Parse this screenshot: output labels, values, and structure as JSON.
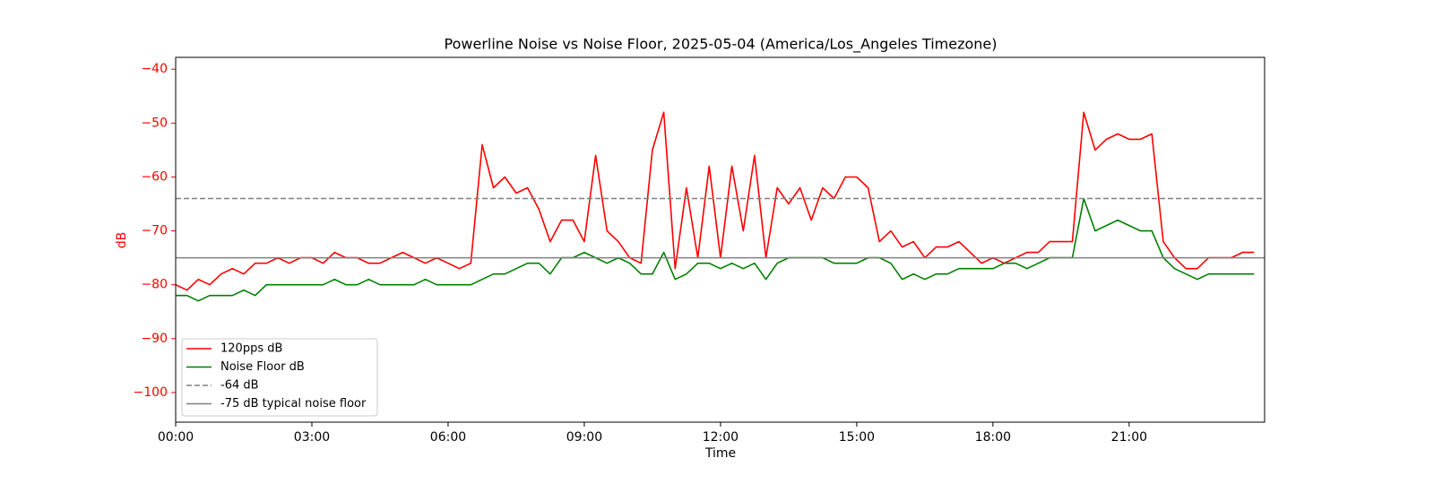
{
  "chart_data": {
    "type": "line",
    "title": "Powerline Noise vs Noise Floor, 2025-05-04 (America/Los_Angeles Timezone)",
    "xlabel": "Time",
    "ylabel": "dB",
    "ylabel_color": "red",
    "x": [
      "00:00",
      "00:15",
      "00:30",
      "00:45",
      "01:00",
      "01:15",
      "01:30",
      "01:45",
      "02:00",
      "02:15",
      "02:30",
      "02:45",
      "03:00",
      "03:15",
      "03:30",
      "03:45",
      "04:00",
      "04:15",
      "04:30",
      "04:45",
      "05:00",
      "05:15",
      "05:30",
      "05:45",
      "06:00",
      "06:15",
      "06:30",
      "06:45",
      "07:00",
      "07:15",
      "07:30",
      "07:45",
      "08:00",
      "08:15",
      "08:30",
      "08:45",
      "09:00",
      "09:15",
      "09:30",
      "09:45",
      "10:00",
      "10:15",
      "10:30",
      "10:45",
      "11:00",
      "11:15",
      "11:30",
      "11:45",
      "12:00",
      "12:15",
      "12:30",
      "12:45",
      "13:00",
      "13:15",
      "13:30",
      "13:45",
      "14:00",
      "14:15",
      "14:30",
      "14:45",
      "15:00",
      "15:15",
      "15:30",
      "15:45",
      "16:00",
      "16:15",
      "16:30",
      "16:45",
      "17:00",
      "17:15",
      "17:30",
      "17:45",
      "18:00",
      "18:15",
      "18:30",
      "18:45",
      "19:00",
      "19:15",
      "19:30",
      "19:45",
      "20:00",
      "20:15",
      "20:30",
      "20:45",
      "21:00",
      "21:15",
      "21:30",
      "21:45",
      "22:00",
      "22:15",
      "22:30",
      "22:45",
      "23:00",
      "23:15",
      "23:30",
      "23:45"
    ],
    "series": [
      {
        "name": "120pps dB",
        "color": "red",
        "values": [
          -80,
          -81,
          -79,
          -80,
          -78,
          -77,
          -78,
          -76,
          -76,
          -75,
          -76,
          -75,
          -75,
          -76,
          -74,
          -75,
          -75,
          -76,
          -76,
          -75,
          -74,
          -75,
          -76,
          -75,
          -76,
          -77,
          -76,
          -54,
          -62,
          -60,
          -63,
          -62,
          -66,
          -72,
          -68,
          -68,
          -72,
          -56,
          -70,
          -72,
          -75,
          -76,
          -55,
          -48,
          -77,
          -62,
          -75,
          -58,
          -75,
          -58,
          -70,
          -56,
          -75,
          -62,
          -65,
          -62,
          -68,
          -62,
          -64,
          -60,
          -60,
          -62,
          -72,
          -70,
          -73,
          -72,
          -75,
          -73,
          -73,
          -72,
          -74,
          -76,
          -75,
          -76,
          -75,
          -74,
          -74,
          -72,
          -72,
          -72,
          -48,
          -55,
          -53,
          -52,
          -53,
          -53,
          -52,
          -72,
          -75,
          -77,
          -77,
          -75,
          -75,
          -75,
          -74,
          -74
        ]
      },
      {
        "name": "Noise Floor dB",
        "color": "green",
        "values": [
          -82,
          -82,
          -83,
          -82,
          -82,
          -82,
          -81,
          -82,
          -80,
          -80,
          -80,
          -80,
          -80,
          -80,
          -79,
          -80,
          -80,
          -79,
          -80,
          -80,
          -80,
          -80,
          -79,
          -80,
          -80,
          -80,
          -80,
          -79,
          -78,
          -78,
          -77,
          -76,
          -76,
          -78,
          -75,
          -75,
          -74,
          -75,
          -76,
          -75,
          -76,
          -78,
          -78,
          -74,
          -79,
          -78,
          -76,
          -76,
          -77,
          -76,
          -77,
          -76,
          -79,
          -76,
          -75,
          -75,
          -75,
          -75,
          -76,
          -76,
          -76,
          -75,
          -75,
          -76,
          -79,
          -78,
          -79,
          -78,
          -78,
          -77,
          -77,
          -77,
          -77,
          -76,
          -76,
          -77,
          -76,
          -75,
          -75,
          -75,
          -64,
          -70,
          -69,
          -68,
          -69,
          -70,
          -70,
          -75,
          -77,
          -78,
          -79,
          -78,
          -78,
          -78,
          -78,
          -78
        ]
      }
    ],
    "hlines": [
      {
        "name": "-64 dB",
        "value": -64,
        "color": "gray",
        "style": "dashed"
      },
      {
        "name": "-75 dB typical noise floor",
        "value": -75,
        "color": "gray",
        "style": "solid"
      }
    ],
    "xlim": [
      "00:00",
      "23:59"
    ],
    "xticks": [
      "00:00",
      "03:00",
      "06:00",
      "09:00",
      "12:00",
      "15:00",
      "18:00",
      "21:00"
    ],
    "ylim": [
      -105.5,
      -37.8
    ],
    "yticks": [
      {
        "value": -40,
        "label": "−40"
      },
      {
        "value": -50,
        "label": "−50"
      },
      {
        "value": -60,
        "label": "−60"
      },
      {
        "value": -70,
        "label": "−70"
      },
      {
        "value": -80,
        "label": "−80"
      },
      {
        "value": -90,
        "label": "−90"
      },
      {
        "value": -100,
        "label": "−100"
      }
    ],
    "ytick_color": "red",
    "legend": "lower left",
    "grid": false
  }
}
